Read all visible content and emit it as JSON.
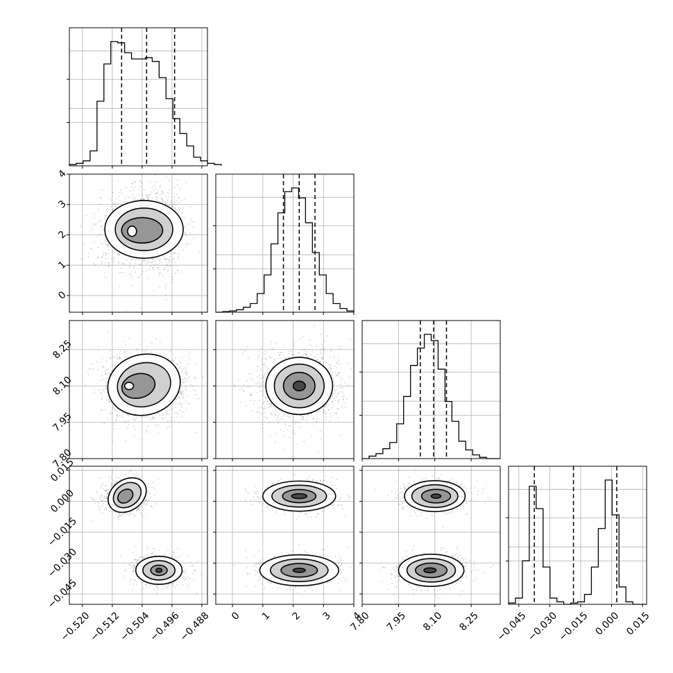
{
  "figure": {
    "type": "corner-plot",
    "parameters": 4
  },
  "axes": {
    "p0": {
      "ticks": [
        -0.52,
        -0.512,
        -0.504,
        -0.496,
        -0.488
      ],
      "labels": [
        "−0.520",
        "−0.512",
        "−0.504",
        "−0.496",
        "−0.488"
      ]
    },
    "p1": {
      "ticks": [
        0,
        1,
        2,
        3,
        4
      ],
      "labels": [
        "0",
        "1",
        "2",
        "3",
        "4"
      ]
    },
    "p2": {
      "ticks": [
        7.8,
        7.95,
        8.1,
        8.25
      ],
      "labels": [
        "7.80",
        "7.95",
        "8.10",
        "8.25"
      ]
    },
    "p3": {
      "ticks": [
        -0.045,
        -0.03,
        -0.015,
        0.0,
        0.015
      ],
      "labels": [
        "−0.045",
        "−0.030",
        "−0.015",
        "0.000",
        "0.015"
      ]
    }
  },
  "chart_data": {
    "type": "corner",
    "grid": true,
    "parameters": [
      {
        "range": [
          -0.5235,
          -0.4865
        ],
        "quantiles": [
          -0.5095,
          -0.5028,
          -0.4953
        ],
        "hist_edges_start": -0.5235,
        "hist_bin_width": 0.00185,
        "hist_values": [
          0.01,
          0.02,
          0.04,
          0.12,
          0.52,
          0.82,
          1.0,
          0.99,
          0.91,
          0.86,
          0.86,
          0.87,
          0.84,
          0.71,
          0.54,
          0.38,
          0.26,
          0.16,
          0.07,
          0.04,
          0.02,
          0.01
        ]
      },
      {
        "range": [
          -0.55,
          4.0
        ],
        "quantiles": [
          1.68,
          2.2,
          2.72
        ],
        "hist_edges_start": -0.55,
        "hist_bin_width": 0.2275,
        "hist_values": [
          0.0,
          0.005,
          0.01,
          0.02,
          0.04,
          0.07,
          0.15,
          0.3,
          0.55,
          0.8,
          0.97,
          1.0,
          0.92,
          0.72,
          0.48,
          0.3,
          0.15,
          0.07,
          0.03,
          0.01
        ]
      },
      {
        "range": [
          7.8,
          8.37
        ],
        "quantiles": [
          8.04,
          8.095,
          8.148
        ],
        "hist_edges_start": 7.8,
        "hist_bin_width": 0.0285,
        "hist_values": [
          0.0,
          0.02,
          0.04,
          0.08,
          0.13,
          0.28,
          0.5,
          0.75,
          0.89,
          1.0,
          0.95,
          0.72,
          0.46,
          0.3,
          0.14,
          0.07,
          0.03,
          0.01,
          0.0,
          0.0
        ]
      },
      {
        "range": [
          -0.05,
          0.017
        ],
        "quantiles": [
          -0.0375,
          -0.0185,
          0.0025
        ],
        "hist_edges_start": -0.05,
        "hist_bin_width": 0.00335,
        "hist_values": [
          0.01,
          0.05,
          0.35,
          0.95,
          0.77,
          0.3,
          0.05,
          0.02,
          0.0,
          0.01,
          0.02,
          0.08,
          0.3,
          0.61,
          1.0,
          0.72,
          0.14,
          0.02,
          0.0,
          0.0
        ]
      }
    ],
    "pairs": [
      {
        "x": 0,
        "y": 1,
        "components": [
          {
            "mean": [
              -0.5068,
              2.12
            ],
            "sd": [
              0.0035,
              0.52
            ],
            "w": 0.55
          },
          {
            "mean": [
              -0.4995,
              2.2
            ],
            "sd": [
              0.0028,
              0.58
            ],
            "w": 0.45
          }
        ],
        "levels": [
          {
            "mean": [
              -0.5035,
              2.18
            ],
            "rx": 0.0105,
            "ry": 0.95,
            "rot": 0
          },
          {
            "mean": [
              -0.5035,
              2.18
            ],
            "rx": 0.0077,
            "ry": 0.7,
            "rot": 0
          },
          {
            "mean": [
              -0.504,
              2.15
            ],
            "rx": 0.0055,
            "ry": 0.42,
            "rot": 0
          },
          {
            "mean": [
              -0.5067,
              2.12
            ],
            "rx": 0.0012,
            "ry": 0.17,
            "rot": 0
          }
        ]
      },
      {
        "x": 0,
        "y": 2,
        "components": [
          {
            "mean": [
              -0.5075,
              8.1
            ],
            "sd": [
              0.0032,
              0.055
            ],
            "w": 0.55
          },
          {
            "mean": [
              -0.4985,
              8.1
            ],
            "sd": [
              0.003,
              0.05
            ],
            "w": 0.45
          }
        ],
        "levels": [
          {
            "mean": [
              -0.5035,
              8.105
            ],
            "rx": 0.0098,
            "ry": 0.125,
            "rot": -14
          },
          {
            "mean": [
              -0.5035,
              8.105
            ],
            "rx": 0.0072,
            "ry": 0.09,
            "rot": -14
          },
          {
            "mean": [
              -0.505,
              8.1
            ],
            "rx": 0.0045,
            "ry": 0.05,
            "rot": -14
          },
          {
            "mean": [
              -0.5075,
              8.1
            ],
            "rx": 0.0012,
            "ry": 0.015,
            "rot": 0
          }
        ]
      },
      {
        "x": 1,
        "y": 2,
        "components": [
          {
            "mean": [
              2.2,
              8.1
            ],
            "sd": [
              0.55,
              0.06
            ],
            "w": 1.0
          }
        ],
        "levels": [
          {
            "mean": [
              2.2,
              8.1
            ],
            "rx": 1.1,
            "ry": 0.118,
            "rot": 0
          },
          {
            "mean": [
              2.2,
              8.1
            ],
            "rx": 0.82,
            "ry": 0.09,
            "rot": 0
          },
          {
            "mean": [
              2.2,
              8.1
            ],
            "rx": 0.52,
            "ry": 0.056,
            "rot": 0
          },
          {
            "mean": [
              2.2,
              8.1
            ],
            "rx": 0.2,
            "ry": 0.02,
            "rot": 0
          }
        ]
      },
      {
        "x": 0,
        "y": 3,
        "components": [
          {
            "mean": [
              -0.5085,
              0.0025
            ],
            "sd": [
              0.0025,
              0.0035
            ],
            "w": 0.5
          },
          {
            "mean": [
              -0.4995,
              -0.0335
            ],
            "sd": [
              0.003,
              0.003
            ],
            "w": 0.5
          }
        ],
        "levels": [
          {
            "mean": [
              -0.508,
              0.003
            ],
            "rx": 0.0055,
            "ry": 0.0075,
            "rot": -35
          },
          {
            "mean": [
              -0.508,
              0.003
            ],
            "rx": 0.004,
            "ry": 0.0055,
            "rot": -35
          },
          {
            "mean": [
              -0.5085,
              0.0025
            ],
            "rx": 0.0022,
            "ry": 0.003,
            "rot": -35
          },
          {
            "mean": [
              -0.4995,
              -0.0335
            ],
            "rx": 0.0062,
            "ry": 0.0068,
            "rot": 0
          },
          {
            "mean": [
              -0.4995,
              -0.0335
            ],
            "rx": 0.0043,
            "ry": 0.0047,
            "rot": 0
          },
          {
            "mean": [
              -0.4995,
              -0.0335
            ],
            "rx": 0.0022,
            "ry": 0.0025,
            "rot": 0
          },
          {
            "mean": [
              -0.4995,
              -0.0335
            ],
            "rx": 0.0008,
            "ry": 0.001,
            "rot": 0
          }
        ]
      },
      {
        "x": 1,
        "y": 3,
        "components": [
          {
            "mean": [
              2.2,
              0.0025
            ],
            "sd": [
              0.5,
              0.003
            ],
            "w": 0.5
          },
          {
            "mean": [
              2.2,
              -0.0335
            ],
            "sd": [
              0.55,
              0.0032
            ],
            "w": 0.5
          }
        ],
        "levels": [
          {
            "mean": [
              2.2,
              0.0025
            ],
            "rx": 1.2,
            "ry": 0.0073,
            "rot": 0
          },
          {
            "mean": [
              2.2,
              0.0025
            ],
            "rx": 0.9,
            "ry": 0.0053,
            "rot": 0
          },
          {
            "mean": [
              2.2,
              0.0025
            ],
            "rx": 0.55,
            "ry": 0.0032,
            "rot": 0
          },
          {
            "mean": [
              2.2,
              0.0025
            ],
            "rx": 0.25,
            "ry": 0.0012,
            "rot": 0
          },
          {
            "mean": [
              2.2,
              -0.0335
            ],
            "rx": 1.3,
            "ry": 0.0075,
            "rot": 0
          },
          {
            "mean": [
              2.2,
              -0.0335
            ],
            "rx": 0.95,
            "ry": 0.0055,
            "rot": 0
          },
          {
            "mean": [
              2.2,
              -0.0335
            ],
            "rx": 0.6,
            "ry": 0.0033,
            "rot": 0
          },
          {
            "mean": [
              2.2,
              -0.0335
            ],
            "rx": 0.2,
            "ry": 0.001,
            "rot": 0
          }
        ]
      },
      {
        "x": 2,
        "y": 3,
        "components": [
          {
            "mean": [
              8.105,
              0.0025
            ],
            "sd": [
              0.055,
              0.003
            ],
            "w": 0.5
          },
          {
            "mean": [
              8.085,
              -0.0335
            ],
            "sd": [
              0.06,
              0.0032
            ],
            "w": 0.5
          }
        ],
        "levels": [
          {
            "mean": [
              8.1,
              0.0025
            ],
            "rx": 0.125,
            "ry": 0.0075,
            "rot": 0
          },
          {
            "mean": [
              8.1,
              0.0025
            ],
            "rx": 0.095,
            "ry": 0.0055,
            "rot": 0
          },
          {
            "mean": [
              8.105,
              0.0025
            ],
            "rx": 0.06,
            "ry": 0.0033,
            "rot": 0
          },
          {
            "mean": [
              8.105,
              0.0025
            ],
            "rx": 0.02,
            "ry": 0.001,
            "rot": 0
          },
          {
            "mean": [
              8.085,
              -0.0335
            ],
            "rx": 0.135,
            "ry": 0.0078,
            "rot": 0
          },
          {
            "mean": [
              8.085,
              -0.0335
            ],
            "rx": 0.1,
            "ry": 0.0057,
            "rot": 0
          },
          {
            "mean": [
              8.085,
              -0.0335
            ],
            "rx": 0.065,
            "ry": 0.0035,
            "rot": 0
          },
          {
            "mean": [
              8.08,
              -0.0335
            ],
            "rx": 0.025,
            "ry": 0.0012,
            "rot": 0
          }
        ]
      }
    ]
  }
}
